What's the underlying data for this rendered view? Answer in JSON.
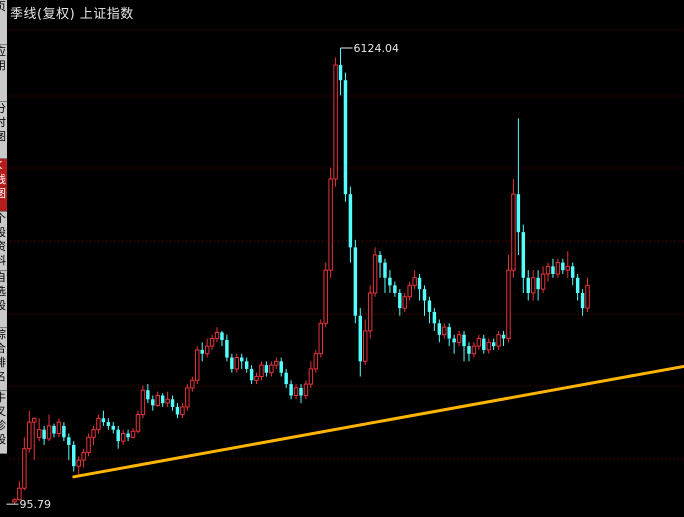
{
  "title": "季线(复权)  上证指数",
  "sidebar": {
    "tabs": [
      {
        "label": "页"
      },
      {
        "label": "应用"
      },
      {
        "label": "分时图"
      },
      {
        "label": "K线图"
      },
      {
        "label": "个股资料"
      },
      {
        "label": "自选股"
      },
      {
        "label": "综合排名"
      },
      {
        "label": "牛叉诊股"
      }
    ],
    "active_index": 3
  },
  "colors": {
    "up": "#e8333b",
    "down": "#54ffff",
    "trend": "#ffb400",
    "grid": "#8b0000",
    "label": "#e8e8e8"
  },
  "chart_data": {
    "type": "candlestick",
    "ylim": [
      95.79,
      6124.04
    ],
    "high_label": "6124.04",
    "low_label": "95.79",
    "grid": true,
    "trend_arrow": {
      "from": {
        "index": 12,
        "value": 480
      },
      "to": {
        "index": 227,
        "value": 3010
      }
    },
    "candles": [
      [
        150,
        180,
        120,
        196
      ],
      [
        180,
        330,
        170,
        420
      ],
      [
        330,
        850,
        300,
        1000
      ],
      [
        850,
        1200,
        800,
        1350
      ],
      [
        1200,
        1250,
        700,
        1260
      ],
      [
        1000,
        1100,
        950,
        1250
      ],
      [
        1100,
        980,
        900,
        1150
      ],
      [
        980,
        1150,
        950,
        1300
      ],
      [
        1150,
        1050,
        1000,
        1180
      ],
      [
        1050,
        1200,
        1000,
        1250
      ],
      [
        1150,
        1000,
        950,
        1200
      ],
      [
        1000,
        900,
        700,
        1050
      ],
      [
        900,
        620,
        550,
        950
      ],
      [
        620,
        700,
        500,
        750
      ],
      [
        700,
        800,
        600,
        850
      ],
      [
        800,
        1000,
        750,
        1050
      ],
      [
        1000,
        1100,
        900,
        1150
      ],
      [
        1100,
        1250,
        1050,
        1300
      ],
      [
        1250,
        1200,
        1150,
        1350
      ],
      [
        1200,
        1150,
        1100,
        1250
      ],
      [
        1150,
        1100,
        1050,
        1200
      ],
      [
        1100,
        950,
        850,
        1150
      ],
      [
        950,
        1050,
        900,
        1100
      ],
      [
        1050,
        1000,
        950,
        1100
      ],
      [
        1000,
        1080,
        980,
        1120
      ],
      [
        1080,
        1300,
        1050,
        1350
      ],
      [
        1300,
        1620,
        1250,
        1680
      ],
      [
        1620,
        1500,
        1450,
        1700
      ],
      [
        1500,
        1420,
        1350,
        1550
      ],
      [
        1420,
        1550,
        1400,
        1600
      ],
      [
        1550,
        1450,
        1400,
        1580
      ],
      [
        1450,
        1500,
        1400,
        1600
      ],
      [
        1500,
        1400,
        1350,
        1550
      ],
      [
        1400,
        1300,
        1250,
        1450
      ],
      [
        1300,
        1400,
        1250,
        1450
      ],
      [
        1400,
        1650,
        1350,
        1700
      ],
      [
        1650,
        1750,
        1600,
        1800
      ],
      [
        1750,
        2150,
        1700,
        2200
      ],
      [
        2150,
        2100,
        2000,
        2250
      ],
      [
        2100,
        2200,
        2050,
        2300
      ],
      [
        2200,
        2300,
        2150,
        2350
      ],
      [
        2300,
        2380,
        2250,
        2450
      ],
      [
        2380,
        2280,
        2200,
        2400
      ],
      [
        2280,
        2050,
        2000,
        2350
      ],
      [
        2050,
        1900,
        1850,
        2100
      ],
      [
        1900,
        2050,
        1850,
        2100
      ],
      [
        2050,
        2000,
        1900,
        2100
      ],
      [
        2000,
        1900,
        1850,
        2050
      ],
      [
        1900,
        1750,
        1700,
        1950
      ],
      [
        1750,
        1800,
        1700,
        1850
      ],
      [
        1800,
        1950,
        1750,
        2000
      ],
      [
        1950,
        1850,
        1800,
        2000
      ],
      [
        1850,
        1950,
        1800,
        2000
      ],
      [
        1950,
        2000,
        1900,
        2050
      ],
      [
        2000,
        1850,
        1800,
        2050
      ],
      [
        1850,
        1700,
        1650,
        1900
      ],
      [
        1700,
        1550,
        1500,
        1750
      ],
      [
        1550,
        1650,
        1500,
        1700
      ],
      [
        1650,
        1550,
        1450,
        1700
      ],
      [
        1550,
        1700,
        1500,
        1750
      ],
      [
        1700,
        1900,
        1650,
        2000
      ],
      [
        1900,
        2100,
        1850,
        2150
      ],
      [
        2100,
        2500,
        2050,
        2550
      ],
      [
        2500,
        3200,
        2450,
        3300
      ],
      [
        3200,
        4400,
        3100,
        4550
      ],
      [
        4400,
        5900,
        4300,
        6000
      ],
      [
        5900,
        5700,
        5500,
        6124.04
      ],
      [
        5700,
        4200,
        4100,
        5800
      ],
      [
        4200,
        3500,
        3300,
        4300
      ],
      [
        3500,
        2600,
        2500,
        3600
      ],
      [
        2600,
        2000,
        1800,
        2700
      ],
      [
        2000,
        2400,
        1950,
        2550
      ],
      [
        2400,
        2900,
        2300,
        3000
      ],
      [
        2900,
        3400,
        2850,
        3500
      ],
      [
        3400,
        3300,
        3100,
        3450
      ],
      [
        3300,
        3100,
        2900,
        3350
      ],
      [
        3100,
        3000,
        2900,
        3200
      ],
      [
        3000,
        2900,
        2850,
        3050
      ],
      [
        2900,
        2700,
        2600,
        2950
      ],
      [
        2700,
        2850,
        2650,
        2900
      ],
      [
        2850,
        3000,
        2800,
        3050
      ],
      [
        3000,
        3100,
        2950,
        3200
      ],
      [
        3100,
        2950,
        2800,
        3150
      ],
      [
        2950,
        2800,
        2600,
        3000
      ],
      [
        2800,
        2650,
        2500,
        2850
      ],
      [
        2650,
        2500,
        2400,
        2700
      ],
      [
        2500,
        2350,
        2250,
        2550
      ],
      [
        2350,
        2450,
        2300,
        2500
      ],
      [
        2450,
        2300,
        2200,
        2500
      ],
      [
        2300,
        2250,
        2100,
        2350
      ],
      [
        2250,
        2350,
        2200,
        2400
      ],
      [
        2350,
        2200,
        2000,
        2400
      ],
      [
        2200,
        2100,
        2000,
        2250
      ],
      [
        2100,
        2200,
        2050,
        2250
      ],
      [
        2200,
        2300,
        2150,
        2350
      ],
      [
        2300,
        2150,
        2100,
        2350
      ],
      [
        2150,
        2250,
        2100,
        2300
      ],
      [
        2250,
        2200,
        2150,
        2300
      ],
      [
        2200,
        2350,
        2150,
        2400
      ],
      [
        2350,
        2300,
        2200,
        2400
      ],
      [
        2300,
        3200,
        2250,
        3400
      ],
      [
        3200,
        4200,
        3100,
        4400
      ],
      [
        4200,
        3700,
        3400,
        5200
      ],
      [
        3700,
        3100,
        2900,
        3800
      ],
      [
        3100,
        2900,
        2800,
        3200
      ],
      [
        2900,
        3100,
        2800,
        3200
      ],
      [
        3100,
        2950,
        2800,
        3200
      ],
      [
        2950,
        3150,
        2900,
        3250
      ],
      [
        3150,
        3250,
        3050,
        3300
      ],
      [
        3250,
        3150,
        3100,
        3350
      ],
      [
        3150,
        3300,
        3100,
        3350
      ],
      [
        3300,
        3200,
        3150,
        3350
      ],
      [
        3200,
        3250,
        3100,
        3450
      ],
      [
        3250,
        3100,
        3000,
        3300
      ],
      [
        3100,
        2900,
        2800,
        3150
      ],
      [
        2900,
        2700,
        2600,
        2950
      ],
      [
        2700,
        3000,
        2650,
        3100
      ]
    ]
  }
}
